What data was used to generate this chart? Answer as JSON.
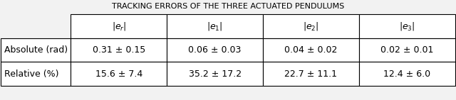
{
  "title": "Tracking errors of the three actuated pendulums",
  "col_headers": [
    "|e_r|",
    "|e_1|",
    "|e_2|",
    "|e_3|"
  ],
  "row_headers": [
    "Absolute (rad)",
    "Relative (%)"
  ],
  "cell_data": [
    [
      "0.31 ± 0.15",
      "0.06 ± 0.03",
      "0.04 ± 0.02",
      "0.02 ± 0.01"
    ],
    [
      "15.6 ± 7.4",
      "35.2 ± 17.2",
      "22.7 ± 11.1",
      "12.4 ± 6.0"
    ]
  ],
  "col_header_math": [
    "|e_r|",
    "|e_1|",
    "|e_2|",
    "|e_3|"
  ],
  "bg_color": "#f2f2f2",
  "header_bg": "#ffffff",
  "cell_bg": "#ffffff",
  "text_color": "#000000",
  "fontsize": 9,
  "title_fontsize": 8
}
